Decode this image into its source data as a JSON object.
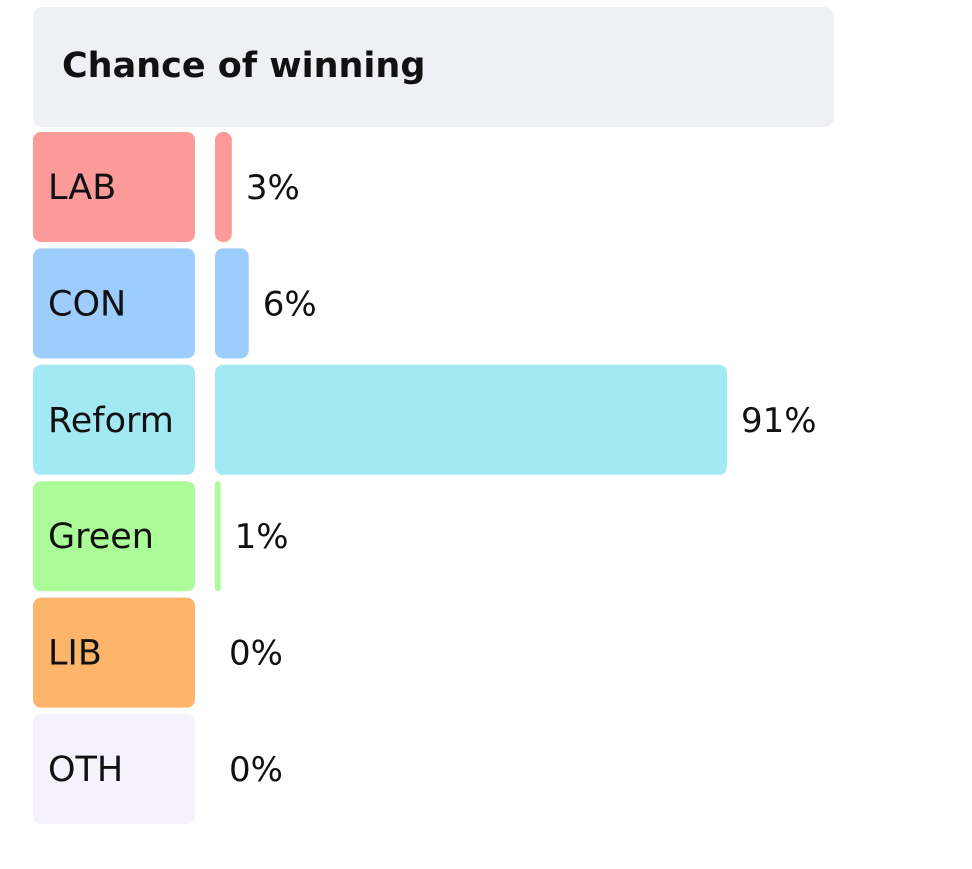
{
  "chart_data": {
    "type": "bar",
    "orientation": "horizontal",
    "title": "Chance of winning",
    "xlim": [
      0,
      100
    ],
    "categories": [
      "LAB",
      "CON",
      "Reform",
      "Green",
      "LIB",
      "OTH"
    ],
    "values": [
      3,
      6,
      91,
      1,
      0,
      0
    ],
    "value_labels": [
      "3%",
      "6%",
      "91%",
      "1%",
      "0%",
      "0%"
    ],
    "colors": [
      "#fc9a9a",
      "#9dcdfc",
      "#a3e9f4",
      "#abfc98",
      "#fdb46b",
      "#f5f2fe"
    ],
    "grid": false,
    "legend": "none"
  }
}
